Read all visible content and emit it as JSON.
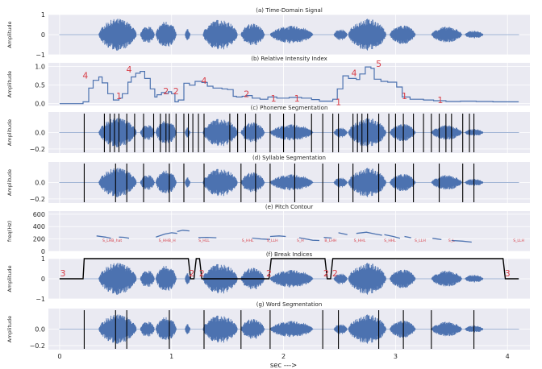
{
  "figure": {
    "xlabel": "sec --->",
    "xticks": [
      0,
      1,
      2,
      3,
      4
    ],
    "xlim": [
      -0.1,
      4.2
    ],
    "colors": {
      "panel_bg": "#eaeaf2",
      "signal": "#4c72b0",
      "marker": "#000000",
      "annotation": "#d8404a"
    }
  },
  "chart_data": [
    {
      "id": "a",
      "type": "line",
      "title": "(a) Time-Domain Signal",
      "ylabel": "Amplitude",
      "ylim": [
        -1,
        1
      ],
      "yticks": [
        "1",
        "0",
        "−1"
      ],
      "ytick_values": [
        1,
        0,
        -1
      ],
      "amp_scale": 0.8,
      "show_wave": true,
      "markers": [],
      "annotations": []
    },
    {
      "id": "b",
      "type": "line",
      "title": "(b) Relative Intensity Index",
      "ylabel": "Amplitude",
      "ylim": [
        -0.05,
        1.1
      ],
      "yticks": [
        "1.0",
        "0.5",
        "0.0"
      ],
      "ytick_values": [
        1.0,
        0.5,
        0.0
      ],
      "show_wave": false,
      "step_x": [
        0,
        0.21,
        0.26,
        0.3,
        0.35,
        0.38,
        0.43,
        0.48,
        0.53,
        0.56,
        0.61,
        0.64,
        0.68,
        0.72,
        0.76,
        0.81,
        0.85,
        0.87,
        0.91,
        0.95,
        0.97,
        1.0,
        1.03,
        1.06,
        1.11,
        1.16,
        1.21,
        1.27,
        1.32,
        1.37,
        1.45,
        1.5,
        1.55,
        1.58,
        1.63,
        1.67,
        1.72,
        1.79,
        1.86,
        1.94,
        2.05,
        2.16,
        2.25,
        2.32,
        2.44,
        2.48,
        2.53,
        2.58,
        2.65,
        2.68,
        2.73,
        2.78,
        2.81,
        2.87,
        2.93,
        3.01,
        3.06,
        3.13,
        3.25,
        3.34,
        3.45,
        3.58,
        3.72,
        3.87,
        4.0,
        4.1
      ],
      "step_y": [
        0,
        0.05,
        0.42,
        0.63,
        0.72,
        0.56,
        0.27,
        0.1,
        0.15,
        0.27,
        0.58,
        0.72,
        0.82,
        0.87,
        0.68,
        0.4,
        0.18,
        0.24,
        0.3,
        0.27,
        0.32,
        0.27,
        0.05,
        0.1,
        0.55,
        0.5,
        0.6,
        0.57,
        0.47,
        0.42,
        0.4,
        0.38,
        0.2,
        0.18,
        0.2,
        0.22,
        0.15,
        0.12,
        0.18,
        0.15,
        0.17,
        0.15,
        0.11,
        0.07,
        0.12,
        0.4,
        0.75,
        0.68,
        0.65,
        0.8,
        0.99,
        0.95,
        0.66,
        0.6,
        0.58,
        0.45,
        0.18,
        0.12,
        0.1,
        0.08,
        0.06,
        0.07,
        0.06,
        0.05,
        0.05
      ],
      "markers": [],
      "annotations": [
        {
          "x": 0.23,
          "y": 0.76,
          "text": "4"
        },
        {
          "x": 0.62,
          "y": 0.93,
          "text": "4"
        },
        {
          "x": 0.53,
          "y": 0.21,
          "text": "1"
        },
        {
          "x": 0.95,
          "y": 0.34,
          "text": "2"
        },
        {
          "x": 1.04,
          "y": 0.34,
          "text": "2"
        },
        {
          "x": 1.29,
          "y": 0.62,
          "text": "4"
        },
        {
          "x": 1.67,
          "y": 0.27,
          "text": "2"
        },
        {
          "x": 1.91,
          "y": 0.15,
          "text": "1"
        },
        {
          "x": 2.12,
          "y": 0.15,
          "text": "1"
        },
        {
          "x": 2.49,
          "y": 0.05,
          "text": "1"
        },
        {
          "x": 2.63,
          "y": 0.83,
          "text": "4"
        },
        {
          "x": 2.85,
          "y": 1.08,
          "text": "5"
        },
        {
          "x": 3.08,
          "y": 0.21,
          "text": "1"
        },
        {
          "x": 3.4,
          "y": 0.1,
          "text": "1"
        }
      ]
    },
    {
      "id": "c",
      "type": "line",
      "title": "(c) Phoneme Segmentation",
      "ylabel": "Amplitude",
      "ylim": [
        -0.25,
        0.25
      ],
      "yticks": [
        "0.0",
        "−0.2"
      ],
      "ytick_values": [
        0.0,
        -0.2
      ],
      "amp_scale": 0.18,
      "show_wave": true,
      "markers": [
        0.22,
        0.4,
        0.45,
        0.49,
        0.53,
        0.6,
        0.67,
        0.75,
        0.84,
        0.9,
        0.95,
        0.98,
        1.04,
        1.11,
        1.15,
        1.19,
        1.24,
        1.29,
        1.52,
        1.59,
        1.66,
        1.75,
        1.88,
        2.0,
        2.1,
        2.25,
        2.35,
        2.44,
        2.49,
        2.62,
        2.66,
        2.7,
        2.75,
        2.85,
        2.94,
        3.0,
        3.07,
        3.16,
        3.25,
        3.32,
        3.39,
        3.45,
        3.5,
        3.6,
        3.66,
        3.7
      ],
      "annotations": []
    },
    {
      "id": "d",
      "type": "line",
      "title": "(d) Syllable Segmentation",
      "ylabel": "Amplitude",
      "ylim": [
        -0.25,
        0.25
      ],
      "yticks": [
        "0.0",
        "−0.2"
      ],
      "ytick_values": [
        0.0,
        -0.2
      ],
      "amp_scale": 0.18,
      "show_wave": true,
      "markers": [
        0.22,
        0.5,
        0.6,
        0.75,
        0.98,
        1.11,
        1.29,
        1.62,
        1.75,
        1.88,
        2.1,
        2.35,
        2.49,
        2.62,
        2.85,
        3.0,
        3.16,
        3.39,
        3.6,
        3.7
      ],
      "annotations": []
    },
    {
      "id": "e",
      "type": "scatter",
      "title": "(e) Pitch Contour",
      "ylabel": "freq(Hz)",
      "ylim": [
        0,
        650
      ],
      "yticks": [
        "600",
        "400",
        "200",
        "0"
      ],
      "ytick_values": [
        600,
        400,
        200,
        0
      ],
      "show_wave": false,
      "markers": [],
      "pitch_segments": [
        {
          "x": [
            0.33,
            0.41,
            0.46
          ],
          "y": [
            250,
            230,
            210
          ]
        },
        {
          "x": [
            0.53,
            0.57,
            0.62
          ],
          "y": [
            230,
            228,
            212
          ]
        },
        {
          "x": [
            0.86,
            0.94,
            1.0,
            1.05
          ],
          "y": [
            230,
            280,
            300,
            290
          ]
        },
        {
          "x": [
            1.05,
            1.1,
            1.16
          ],
          "y": [
            320,
            340,
            330
          ]
        },
        {
          "x": [
            1.24,
            1.32,
            1.4
          ],
          "y": [
            222,
            226,
            220
          ]
        },
        {
          "x": [
            1.72,
            1.8,
            1.88
          ],
          "y": [
            215,
            200,
            192
          ]
        },
        {
          "x": [
            1.88,
            1.96,
            2.02
          ],
          "y": [
            240,
            250,
            240
          ]
        },
        {
          "x": [
            2.14,
            2.2,
            2.26,
            2.32
          ],
          "y": [
            220,
            200,
            180,
            175
          ]
        },
        {
          "x": [
            2.36,
            2.43
          ],
          "y": [
            225,
            215
          ]
        },
        {
          "x": [
            2.49,
            2.57
          ],
          "y": [
            300,
            270
          ]
        },
        {
          "x": [
            2.65,
            2.74,
            2.82,
            2.88
          ],
          "y": [
            290,
            310,
            280,
            260
          ]
        },
        {
          "x": [
            2.9,
            2.98,
            3.04
          ],
          "y": [
            270,
            240,
            210
          ]
        },
        {
          "x": [
            3.08,
            3.14
          ],
          "y": [
            240,
            220
          ]
        },
        {
          "x": [
            3.33,
            3.41
          ],
          "y": [
            210,
            190
          ]
        },
        {
          "x": [
            3.5,
            3.6,
            3.68
          ],
          "y": [
            175,
            165,
            150
          ]
        }
      ],
      "labels": [
        {
          "x": 0.47,
          "y": 180,
          "text": "S_LHB_hat"
        },
        {
          "x": 0.96,
          "y": 180,
          "text": "S_HHB_H"
        },
        {
          "x": 1.29,
          "y": 180,
          "text": "S_HLL"
        },
        {
          "x": 1.68,
          "y": 180,
          "text": "S_HHL"
        },
        {
          "x": 1.9,
          "y": 180,
          "text": "S_LLH"
        },
        {
          "x": 2.15,
          "y": 180,
          "text": "S_H"
        },
        {
          "x": 2.42,
          "y": 180,
          "text": "B_LHH"
        },
        {
          "x": 2.68,
          "y": 180,
          "text": "S_HHL"
        },
        {
          "x": 2.95,
          "y": 180,
          "text": "S_HHL"
        },
        {
          "x": 3.22,
          "y": 180,
          "text": "S_LLH"
        },
        {
          "x": 3.5,
          "y": 180,
          "text": "S_L"
        },
        {
          "x": 4.1,
          "y": 180,
          "text": "S_LLH"
        }
      ]
    },
    {
      "id": "f",
      "type": "line",
      "title": "(f) Break Indices",
      "ylabel": "Amplitude",
      "ylim": [
        -1,
        1
      ],
      "yticks": [
        "1",
        "0",
        "−1"
      ],
      "ytick_values": [
        1,
        0,
        -1
      ],
      "amp_scale": 0.8,
      "show_wave": true,
      "markers": [],
      "break_x": [
        0,
        0.21,
        0.22,
        1.15,
        1.17,
        1.2,
        1.22,
        1.25,
        1.27,
        1.87,
        1.89,
        2.37,
        2.39,
        2.42,
        2.44,
        3.96,
        3.98,
        4.1
      ],
      "break_y": [
        0,
        0,
        1,
        1,
        0,
        0,
        1,
        1,
        0,
        0,
        1,
        1,
        0,
        0,
        1,
        1,
        0,
        0
      ],
      "annotations": [
        {
          "x": 0.03,
          "y": 0.28,
          "text": "3"
        },
        {
          "x": 1.18,
          "y": 0.28,
          "text": "2"
        },
        {
          "x": 1.27,
          "y": 0.28,
          "text": "2"
        },
        {
          "x": 1.87,
          "y": 0.28,
          "text": "2"
        },
        {
          "x": 2.38,
          "y": 0.28,
          "text": "2"
        },
        {
          "x": 2.46,
          "y": 0.28,
          "text": "2"
        },
        {
          "x": 4.0,
          "y": 0.28,
          "text": "3"
        }
      ]
    },
    {
      "id": "g",
      "type": "line",
      "title": "(g) Word Segmentation",
      "ylabel": "Amplitude",
      "ylim": [
        -0.25,
        0.25
      ],
      "yticks": [
        "0.0",
        "−0.2"
      ],
      "ytick_values": [
        0.0,
        -0.2
      ],
      "amp_scale": 0.18,
      "show_wave": true,
      "markers": [
        0.22,
        0.5,
        0.6,
        0.98,
        1.29,
        1.62,
        1.88,
        2.35,
        2.49,
        2.85,
        3.07,
        3.32,
        3.7
      ],
      "annotations": []
    }
  ]
}
